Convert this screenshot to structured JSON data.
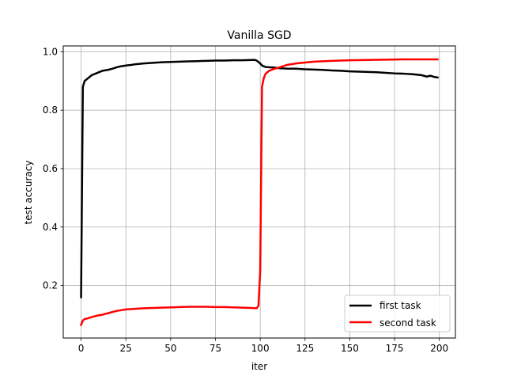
{
  "chart_data": {
    "type": "line",
    "title": "Vanilla SGD",
    "xlabel": "iter",
    "ylabel": "test accuracy",
    "xlim": [
      -9.95,
      208.95
    ],
    "ylim": [
      0.02,
      1.02
    ],
    "xticks": [
      0,
      25,
      50,
      75,
      100,
      125,
      150,
      175,
      200
    ],
    "yticks": [
      0.2,
      0.4,
      0.6,
      0.8,
      1.0
    ],
    "ytick_labels": [
      "0.2",
      "0.4",
      "0.6",
      "0.8",
      "1.0"
    ],
    "grid": true,
    "legend_position": "lower-right",
    "series": [
      {
        "name": "first task",
        "color": "#000000",
        "x": [
          0,
          1,
          2,
          3,
          4,
          5,
          6,
          8,
          10,
          12,
          15,
          18,
          20,
          22,
          25,
          28,
          30,
          35,
          40,
          45,
          50,
          55,
          60,
          65,
          70,
          75,
          80,
          85,
          90,
          95,
          97,
          98,
          99,
          100,
          101,
          102,
          103,
          105,
          108,
          110,
          115,
          120,
          125,
          130,
          135,
          140,
          145,
          150,
          155,
          160,
          165,
          170,
          175,
          180,
          185,
          190,
          193,
          195,
          197,
          199
        ],
        "y": [
          0.16,
          0.88,
          0.9,
          0.905,
          0.91,
          0.915,
          0.92,
          0.925,
          0.93,
          0.935,
          0.938,
          0.943,
          0.947,
          0.95,
          0.953,
          0.955,
          0.957,
          0.96,
          0.962,
          0.964,
          0.965,
          0.966,
          0.967,
          0.968,
          0.969,
          0.97,
          0.97,
          0.971,
          0.971,
          0.972,
          0.972,
          0.97,
          0.965,
          0.96,
          0.953,
          0.95,
          0.948,
          0.947,
          0.946,
          0.944,
          0.942,
          0.942,
          0.94,
          0.939,
          0.938,
          0.936,
          0.935,
          0.933,
          0.932,
          0.931,
          0.93,
          0.928,
          0.926,
          0.925,
          0.923,
          0.92,
          0.915,
          0.918,
          0.914,
          0.912
        ]
      },
      {
        "name": "second task",
        "color": "#ff0000",
        "x": [
          0,
          1,
          2,
          4,
          6,
          8,
          10,
          12,
          15,
          18,
          20,
          25,
          30,
          35,
          40,
          45,
          50,
          55,
          60,
          65,
          70,
          75,
          80,
          85,
          90,
          95,
          98,
          99,
          100,
          101,
          102,
          103,
          105,
          108,
          110,
          115,
          120,
          125,
          130,
          140,
          150,
          160,
          170,
          180,
          190,
          199
        ],
        "y": [
          0.065,
          0.08,
          0.085,
          0.088,
          0.092,
          0.095,
          0.098,
          0.1,
          0.105,
          0.11,
          0.113,
          0.118,
          0.12,
          0.122,
          0.123,
          0.124,
          0.125,
          0.126,
          0.127,
          0.127,
          0.127,
          0.126,
          0.126,
          0.125,
          0.124,
          0.123,
          0.122,
          0.13,
          0.25,
          0.88,
          0.91,
          0.925,
          0.935,
          0.942,
          0.945,
          0.955,
          0.96,
          0.963,
          0.966,
          0.969,
          0.971,
          0.972,
          0.973,
          0.974,
          0.974,
          0.974
        ]
      }
    ]
  }
}
